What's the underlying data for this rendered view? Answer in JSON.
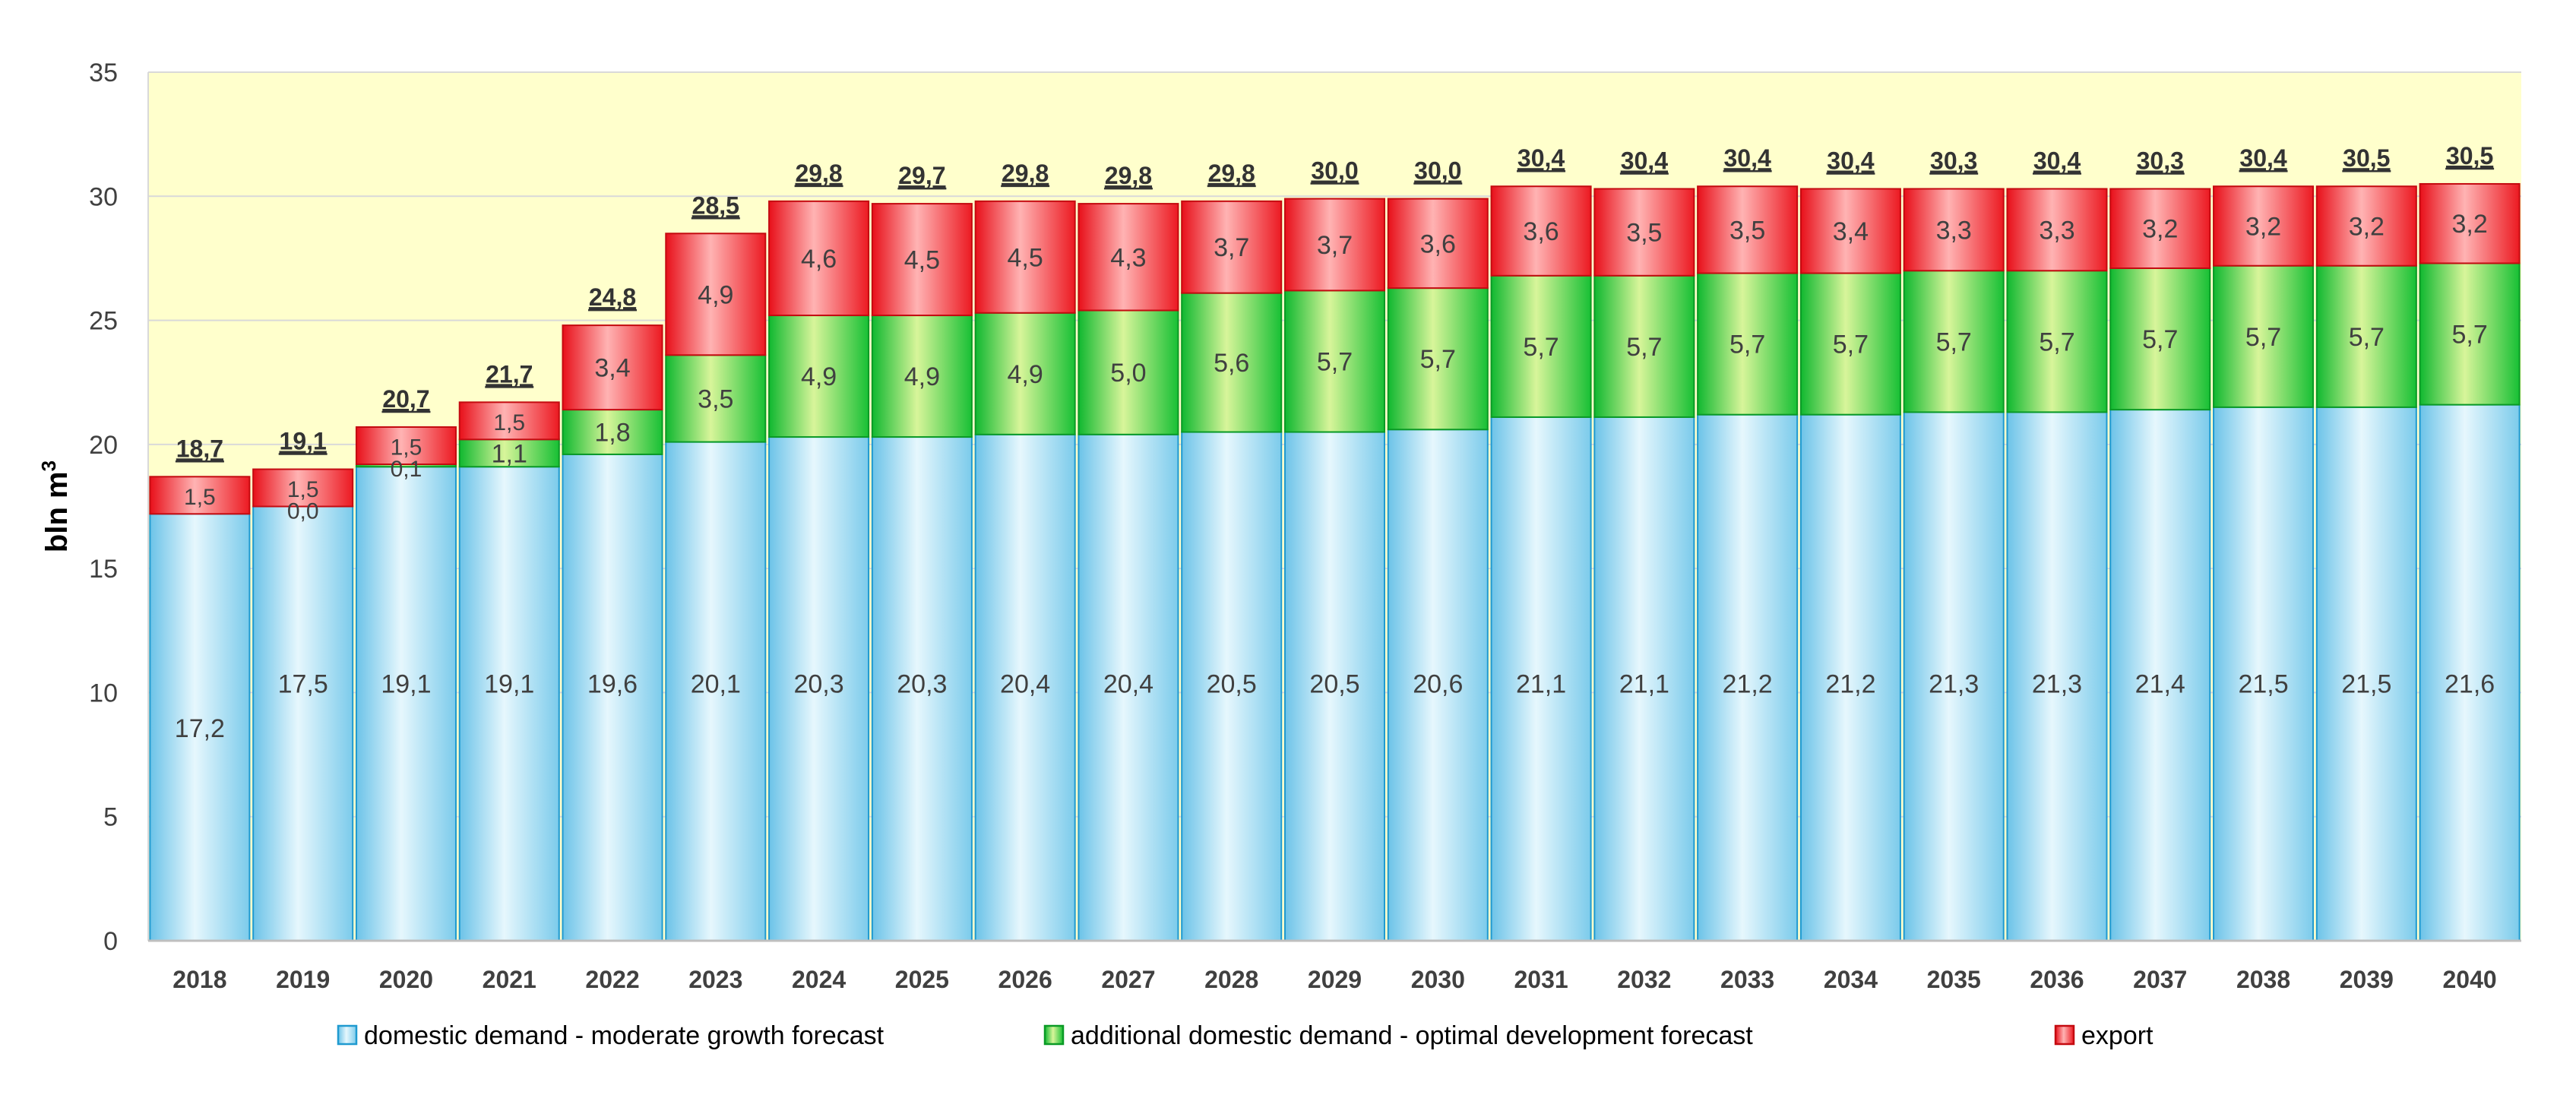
{
  "chart_data": {
    "type": "bar",
    "stacked": true,
    "title": "",
    "xlabel": "",
    "ylabel": "bln m",
    "ylabel_superscript": "3",
    "ylim": [
      0,
      35
    ],
    "yticks": [
      0,
      5,
      10,
      15,
      20,
      25,
      30,
      35
    ],
    "grid": true,
    "legend_position": "bottom",
    "plot_background": "#ffffcc",
    "categories": [
      "2018",
      "2019",
      "2020",
      "2021",
      "2022",
      "2023",
      "2024",
      "2025",
      "2026",
      "2027",
      "2028",
      "2029",
      "2030",
      "2031",
      "2032",
      "2033",
      "2034",
      "2035",
      "2036",
      "2037",
      "2038",
      "2039",
      "2040"
    ],
    "series": [
      {
        "name": "domestic demand - moderate growth forecast",
        "color": "#9fd8f0",
        "values": [
          17.2,
          17.5,
          19.1,
          19.1,
          19.6,
          20.1,
          20.3,
          20.3,
          20.4,
          20.4,
          20.5,
          20.5,
          20.6,
          21.1,
          21.1,
          21.2,
          21.2,
          21.3,
          21.3,
          21.4,
          21.5,
          21.5,
          21.6
        ],
        "labels": [
          "17,2",
          "17,5",
          "19,1",
          "19,1",
          "19,6",
          "20,1",
          "20,3",
          "20,3",
          "20,4",
          "20,4",
          "20,5",
          "20,5",
          "20,6",
          "21,1",
          "21,1",
          "21,2",
          "21,2",
          "21,3",
          "21,3",
          "21,4",
          "21,5",
          "21,5",
          "21,6"
        ]
      },
      {
        "name": "additional domestic demand - optimal development forecast",
        "color": "#33cc33",
        "values": [
          0,
          0.0,
          0.1,
          1.1,
          1.8,
          3.5,
          4.9,
          4.9,
          4.9,
          5.0,
          5.6,
          5.7,
          5.7,
          5.7,
          5.7,
          5.7,
          5.7,
          5.7,
          5.7,
          5.7,
          5.7,
          5.7,
          5.7
        ],
        "labels": [
          "",
          "0,0",
          "0,1",
          "1,1",
          "1,8",
          "3,5",
          "4,9",
          "4,9",
          "4,9",
          "5,0",
          "5,6",
          "5,7",
          "5,7",
          "5,7",
          "5,7",
          "5,7",
          "5,7",
          "5,7",
          "5,7",
          "5,7",
          "5,7",
          "5,7",
          "5,7"
        ]
      },
      {
        "name": "export",
        "color": "#ee2222",
        "values": [
          1.5,
          1.5,
          1.5,
          1.5,
          3.4,
          4.9,
          4.6,
          4.5,
          4.5,
          4.3,
          3.7,
          3.7,
          3.6,
          3.6,
          3.5,
          3.5,
          3.4,
          3.3,
          3.3,
          3.2,
          3.2,
          3.2,
          3.2
        ],
        "labels": [
          "1,5",
          "1,5",
          "1,5",
          "1,5",
          "3,4",
          "4,9",
          "4,6",
          "4,5",
          "4,5",
          "4,3",
          "3,7",
          "3,7",
          "3,6",
          "3,6",
          "3,5",
          "3,5",
          "3,4",
          "3,3",
          "3,3",
          "3,2",
          "3,2",
          "3,2",
          "3,2"
        ]
      }
    ],
    "totals": [
      "18,7",
      "19,1",
      "20,7",
      "21,7",
      "24,8",
      "28,5",
      "29,8",
      "29,7",
      "29,8",
      "29,8",
      "29,8",
      "30,0",
      "30,0",
      "30,4",
      "30,4",
      "30,4",
      "30,4",
      "30,3",
      "30,4",
      "30,3",
      "30,4",
      "30,5",
      "30,5"
    ],
    "tick_labels": [
      "0",
      "5",
      "10",
      "15",
      "20",
      "25",
      "30",
      "35"
    ]
  }
}
